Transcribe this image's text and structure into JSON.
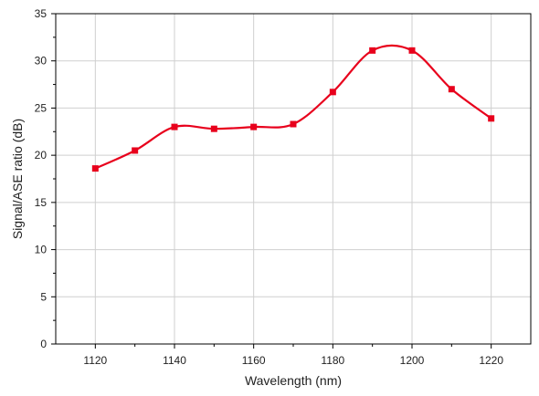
{
  "chart_data": {
    "type": "line",
    "title": "",
    "xlabel": "Wavelength (nm)",
    "ylabel": "Signal/ASE ratio (dB)",
    "xlim": [
      1110,
      1230
    ],
    "ylim": [
      0,
      35
    ],
    "x_ticks": [
      "1120",
      "1140",
      "1160",
      "1180",
      "1200",
      "1220"
    ],
    "y_ticks": [
      "0",
      "5",
      "10",
      "15",
      "20",
      "25",
      "30",
      "35"
    ],
    "grid": true,
    "legend": "none",
    "line_color": "#e8001c",
    "marker_color": "#e8001c",
    "marker": "square",
    "series": [
      {
        "x": [
          1120,
          1130,
          1140,
          1150,
          1160,
          1170,
          1180,
          1190,
          1200,
          1210,
          1220
        ],
        "y": [
          18.6,
          20.5,
          23.0,
          22.8,
          23.0,
          23.3,
          26.7,
          31.1,
          31.1,
          27.0,
          23.9
        ]
      }
    ]
  }
}
